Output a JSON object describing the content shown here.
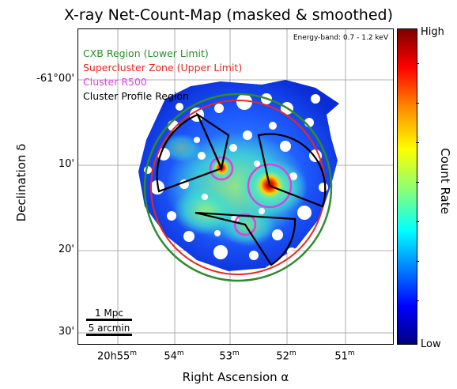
{
  "title": "X-ray Net-Count-Map (masked & smoothed)",
  "energy_band": "Energy-band: 0.7 - 1.2 keV",
  "legend": {
    "cxb": {
      "label": "CXB Region (Lower Limit)",
      "color": "#2e8b2e"
    },
    "supercluster": {
      "label": "Supercluster Zone (Upper Limit)",
      "color": "#e8281e"
    },
    "r500": {
      "label": "Cluster R500",
      "color": "#e040e0"
    },
    "profile": {
      "label": "Cluster Profile Region",
      "color": "#000000"
    }
  },
  "scalebar": {
    "top_label": "1 Mpc",
    "bottom_label": "5 arcmin"
  },
  "y_axis": {
    "label": "Declination δ",
    "ticks": [
      "-61°00'",
      "10'",
      "20'",
      "30'"
    ]
  },
  "x_axis": {
    "label": "Right Ascension α",
    "ticks": [
      {
        "main": "20h55",
        "sup": "m"
      },
      {
        "main": "54",
        "sup": "m"
      },
      {
        "main": "53",
        "sup": "m"
      },
      {
        "main": "52",
        "sup": "m"
      },
      {
        "main": "51",
        "sup": "m"
      }
    ]
  },
  "colorbar": {
    "title": "Count Rate",
    "high": "High",
    "low": "Low"
  }
}
